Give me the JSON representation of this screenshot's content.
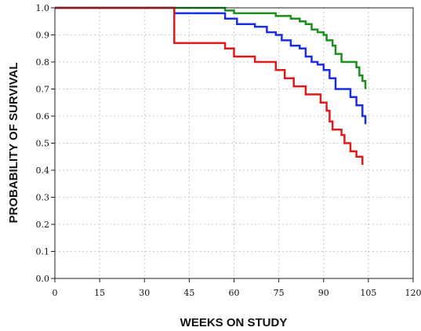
{
  "chart_data": {
    "type": "line",
    "subtype": "step-survival",
    "title": "",
    "xlabel": "WEEKS ON STUDY",
    "ylabel": "PROBABILITY OF SURVIVAL",
    "xlim": [
      0,
      120
    ],
    "ylim": [
      0,
      1.0
    ],
    "xticks": [
      "0",
      "15",
      "30",
      "45",
      "60",
      "75",
      "90",
      "105",
      "120"
    ],
    "yticks": [
      "0.0",
      "0.1",
      "0.2",
      "0.3",
      "0.4",
      "0.5",
      "0.6",
      "0.7",
      "0.8",
      "0.9",
      "1.0"
    ],
    "grid": true,
    "legend": "none",
    "series": [
      {
        "color": "#1a8f1a",
        "points": [
          [
            0,
            1.0
          ],
          [
            55,
            1.0
          ],
          [
            57,
            0.99
          ],
          [
            60,
            0.98
          ],
          [
            72,
            0.98
          ],
          [
            74,
            0.97
          ],
          [
            79,
            0.96
          ],
          [
            82,
            0.95
          ],
          [
            84,
            0.94
          ],
          [
            86,
            0.92
          ],
          [
            88,
            0.91
          ],
          [
            90,
            0.9
          ],
          [
            91,
            0.88
          ],
          [
            93,
            0.86
          ],
          [
            94,
            0.83
          ],
          [
            96,
            0.8
          ],
          [
            100,
            0.8
          ],
          [
            101,
            0.78
          ],
          [
            102,
            0.75
          ],
          [
            103,
            0.73
          ],
          [
            104,
            0.7
          ]
        ]
      },
      {
        "color": "#1a2ee6",
        "points": [
          [
            0,
            1.0
          ],
          [
            40,
            1.0
          ],
          [
            40,
            0.98
          ],
          [
            56,
            0.98
          ],
          [
            57,
            0.96
          ],
          [
            61,
            0.94
          ],
          [
            67,
            0.93
          ],
          [
            71,
            0.91
          ],
          [
            74,
            0.9
          ],
          [
            76,
            0.88
          ],
          [
            79,
            0.86
          ],
          [
            82,
            0.85
          ],
          [
            84,
            0.82
          ],
          [
            86,
            0.8
          ],
          [
            88,
            0.79
          ],
          [
            90,
            0.77
          ],
          [
            92,
            0.74
          ],
          [
            94,
            0.7
          ],
          [
            98,
            0.7
          ],
          [
            99,
            0.67
          ],
          [
            101,
            0.64
          ],
          [
            103,
            0.6
          ],
          [
            104,
            0.57
          ]
        ]
      },
      {
        "color": "#e01a1a",
        "points": [
          [
            0,
            1.0
          ],
          [
            40,
            1.0
          ],
          [
            40,
            0.87
          ],
          [
            56,
            0.87
          ],
          [
            57,
            0.85
          ],
          [
            60,
            0.82
          ],
          [
            66,
            0.82
          ],
          [
            67,
            0.8
          ],
          [
            72,
            0.8
          ],
          [
            74,
            0.77
          ],
          [
            77,
            0.74
          ],
          [
            80,
            0.71
          ],
          [
            84,
            0.68
          ],
          [
            88,
            0.68
          ],
          [
            89,
            0.65
          ],
          [
            91,
            0.62
          ],
          [
            92,
            0.58
          ],
          [
            93,
            0.55
          ],
          [
            96,
            0.53
          ],
          [
            97,
            0.5
          ],
          [
            99,
            0.47
          ],
          [
            101,
            0.45
          ],
          [
            103,
            0.42
          ]
        ]
      }
    ]
  }
}
